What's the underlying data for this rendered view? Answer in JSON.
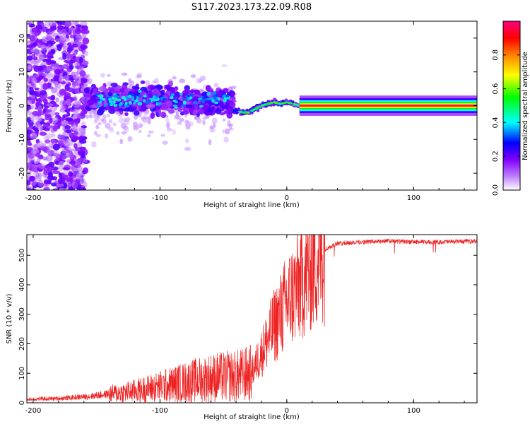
{
  "title": "S117.2023.173.22.09.R08",
  "chart_data": [
    {
      "type": "heatmap",
      "xlabel": "Height of straight line (km)",
      "ylabel": "Frequency (Hz)",
      "xlim": [
        -205,
        150
      ],
      "ylim": [
        -25,
        25
      ],
      "xticks": [
        -200,
        -100,
        0,
        100
      ],
      "yticks": [
        -20,
        -10,
        0,
        10,
        20
      ],
      "colorbar": {
        "label": "Normalized spectral amplitude",
        "range": [
          0,
          1
        ],
        "ticks": [
          "0.0",
          "0.2",
          "0.4",
          "0.6",
          "0.8"
        ],
        "colors": [
          "#ffffff",
          "#8000ff",
          "#0000ff",
          "#00ffff",
          "#00ff00",
          "#ffff00",
          "#ff8000",
          "#ff0000",
          "#ff0080"
        ]
      },
      "ridge": [
        {
          "x": -40,
          "y": -1.5
        },
        {
          "x": -35,
          "y": -2
        },
        {
          "x": -30,
          "y": -2
        },
        {
          "x": -25,
          "y": -1
        },
        {
          "x": -20,
          "y": 0
        },
        {
          "x": -15,
          "y": 0.5
        },
        {
          "x": -10,
          "y": 1
        },
        {
          "x": -5,
          "y": 0.5
        },
        {
          "x": 0,
          "y": 1
        },
        {
          "x": 5,
          "y": 0.5
        },
        {
          "x": 10,
          "y": 0
        },
        {
          "x": 150,
          "y": 0
        }
      ]
    },
    {
      "type": "line",
      "xlabel": "Height of straight line (km)",
      "ylabel": "SNR (10 * v/v)",
      "xlim": [
        -205,
        150
      ],
      "ylim": [
        0,
        570
      ],
      "xticks": [
        -200,
        -100,
        0,
        100
      ],
      "yticks": [
        0,
        100,
        200,
        300,
        400,
        500
      ],
      "color": "#ee2222",
      "trend": [
        {
          "x": -205,
          "y": 12
        },
        {
          "x": -180,
          "y": 15
        },
        {
          "x": -160,
          "y": 20
        },
        {
          "x": -140,
          "y": 30
        },
        {
          "x": -120,
          "y": 40
        },
        {
          "x": -100,
          "y": 55
        },
        {
          "x": -80,
          "y": 70
        },
        {
          "x": -60,
          "y": 85
        },
        {
          "x": -40,
          "y": 90
        },
        {
          "x": -28,
          "y": 100
        },
        {
          "x": -20,
          "y": 170
        },
        {
          "x": -10,
          "y": 260
        },
        {
          "x": 0,
          "y": 340
        },
        {
          "x": 10,
          "y": 400
        },
        {
          "x": 20,
          "y": 470
        },
        {
          "x": 30,
          "y": 520
        },
        {
          "x": 40,
          "y": 540
        },
        {
          "x": 60,
          "y": 545
        },
        {
          "x": 80,
          "y": 548
        },
        {
          "x": 100,
          "y": 545
        },
        {
          "x": 120,
          "y": 545
        },
        {
          "x": 150,
          "y": 548
        }
      ]
    }
  ]
}
